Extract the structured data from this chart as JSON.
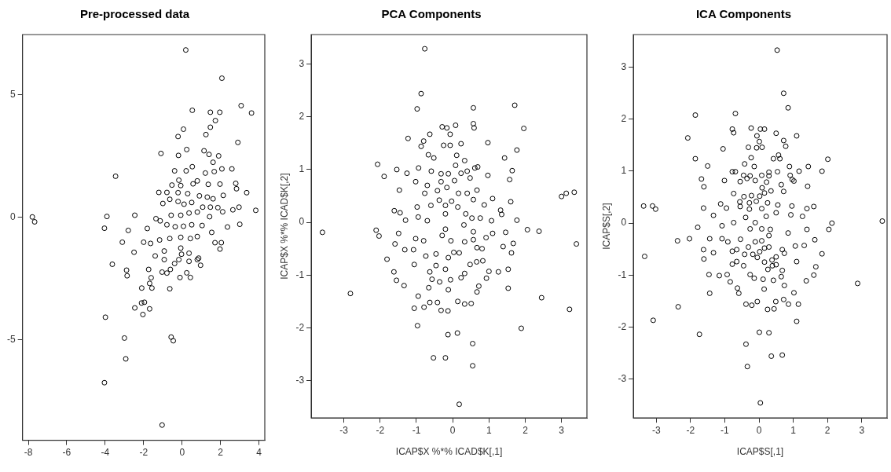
{
  "chart_data": [
    {
      "type": "scatter",
      "title": "Pre-processed data",
      "color": "#000000",
      "marker": "circle",
      "grid": false,
      "legend": false,
      "xlim": [
        -8.3,
        4.3
      ],
      "xticks": [
        -8,
        -6,
        -4,
        -2,
        0,
        2,
        4
      ],
      "ylim": [
        -9.1,
        7.45
      ],
      "yticks": [
        -5,
        0,
        5
      ],
      "x": [
        0.19,
        2.07,
        3.07,
        3.61,
        0.53,
        1.47,
        1.96,
        1.73,
        1.47,
        0.07,
        -0.21,
        1.24,
        2.9,
        0.24,
        -1.1,
        -0.19,
        1.14,
        1.4,
        1.9,
        1.61,
        -3.46,
        0.53,
        -0.39,
        0.21,
        2.07,
        2.59,
        1.67,
        1.21,
        -0.17,
        0.79,
        0.57,
        -0.07,
        -0.53,
        1.36,
        1.97,
        2.79,
        2.83,
        3.36,
        -1.21,
        -0.79,
        -0.21,
        0.29,
        0.9,
        1.31,
        1.61,
        2.14,
        -1.0,
        -0.64,
        -0.21,
        0.1,
        0.5,
        1.07,
        1.47,
        1.86,
        2.11,
        2.64,
        2.96,
        3.83,
        1.43,
        -0.57,
        -0.07,
        0.36,
        0.79,
        -7.79,
        -7.67,
        -3.91,
        -2.46,
        -1.36,
        -4.04,
        -2.8,
        -1.81,
        -1.14,
        -0.79,
        -0.36,
        0.07,
        0.5,
        1.04,
        2.36,
        3.0,
        1.54,
        -3.11,
        -2.0,
        -1.64,
        -1.17,
        -0.64,
        -0.07,
        0.43,
        0.79,
        1.71,
        2.04,
        1.97,
        -2.5,
        -1.4,
        -0.93,
        -0.07,
        0.36,
        0.86,
        -0.93,
        -3.63,
        -2.89,
        -2.86,
        -1.74,
        -1.61,
        -1.04,
        -0.79,
        -0.61,
        -0.39,
        -0.17,
        -0.03,
        0.36,
        0.24,
        -0.11,
        0.43,
        0.79,
        0.96,
        -1.69,
        -2.1,
        -1.57,
        -0.64,
        -2.11,
        -1.96,
        -2.46,
        -1.69,
        -2.04,
        -3.99,
        -3.0,
        -0.57,
        -0.46,
        -2.93,
        -4.04,
        -1.04
      ],
      "values": [
        6.82,
        5.67,
        4.55,
        4.25,
        4.36,
        4.28,
        4.28,
        3.94,
        3.67,
        3.59,
        3.29,
        3.37,
        3.05,
        2.76,
        2.6,
        2.52,
        2.71,
        2.56,
        2.5,
        2.24,
        1.67,
        2.06,
        1.89,
        1.89,
        1.97,
        1.97,
        1.86,
        1.8,
        1.51,
        1.48,
        1.36,
        1.29,
        1.31,
        1.34,
        1.35,
        1.38,
        1.16,
        1.0,
        1.01,
        1.01,
        1.0,
        0.96,
        0.87,
        0.82,
        0.75,
        0.89,
        0.56,
        0.73,
        0.64,
        0.53,
        0.6,
        0.41,
        0.41,
        0.39,
        0.22,
        0.3,
        0.41,
        0.28,
        0.02,
        0.08,
        0.08,
        0.17,
        0.21,
        0.01,
        -0.19,
        0.03,
        0.08,
        -0.06,
        -0.45,
        -0.54,
        -0.46,
        -0.15,
        -0.31,
        -0.39,
        -0.37,
        -0.31,
        -0.34,
        -0.4,
        -0.29,
        -0.62,
        -1.02,
        -1.02,
        -1.07,
        -0.93,
        -0.87,
        -0.82,
        -0.87,
        -0.79,
        -1.04,
        -1.04,
        -1.3,
        -1.43,
        -1.58,
        -1.38,
        -1.26,
        -1.47,
        -1.67,
        -1.73,
        -1.92,
        -2.16,
        -2.39,
        -2.13,
        -2.47,
        -2.24,
        -2.28,
        -2.13,
        -1.89,
        -1.73,
        -1.51,
        -1.8,
        -2.27,
        -2.46,
        -2.46,
        -1.73,
        -1.96,
        -2.7,
        -2.89,
        -2.89,
        -2.92,
        -3.5,
        -3.47,
        -3.7,
        -3.74,
        -3.97,
        -4.08,
        -4.93,
        -4.89,
        -5.04,
        -5.78,
        -6.75,
        -8.48
      ]
    },
    {
      "type": "scatter",
      "title": "PCA Components",
      "xlabel": "ICAP$X %*% ICAD$K[,1]",
      "ylabel": "ICAP$X %*% ICAD$K[,2]",
      "color": "#000000",
      "marker": "circle",
      "grid": false,
      "legend": false,
      "xlim": [
        -3.9,
        3.7
      ],
      "xticks": [
        -3,
        -2,
        -1,
        0,
        1,
        2,
        3
      ],
      "ylim": [
        -3.71,
        3.56
      ],
      "yticks": [
        -3,
        -2,
        -1,
        0,
        1,
        2,
        3
      ],
      "x": [
        -0.77,
        -0.87,
        -0.98,
        0.57,
        1.71,
        1.96,
        0.57,
        0.59,
        -0.29,
        -0.16,
        0.08,
        -0.07,
        -0.63,
        -1.23,
        -0.8,
        -0.87,
        -0.25,
        -0.07,
        0.23,
        0.97,
        1.77,
        1.43,
        -0.67,
        -0.52,
        0.11,
        0.33,
        -2.07,
        -1.54,
        -1.26,
        -0.94,
        -0.59,
        -0.32,
        -0.12,
        0.08,
        0.23,
        0.4,
        0.61,
        0.69,
        0.97,
        1.64,
        1.57,
        -1.89,
        -1.02,
        -0.7,
        -0.32,
        0.05,
        0.48,
        -1.47,
        -0.77,
        -0.42,
        -0.16,
        0.16,
        0.4,
        0.67,
        3.0,
        3.13,
        3.35,
        -0.37,
        -0.03,
        0.57,
        1.1,
        1.6,
        -0.6,
        -0.2,
        0.14,
        0.87,
        -0.98,
        -1.61,
        -1.45,
        -1.3,
        -0.95,
        -0.7,
        -0.2,
        0.36,
        0.53,
        0.76,
        1.32,
        1.35,
        1.07,
        1.77,
        -3.59,
        -2.11,
        -2.03,
        -1.49,
        -0.2,
        0.31,
        0.57,
        1.1,
        1.46,
        2.06,
        2.38,
        -1.02,
        -0.8,
        -0.29,
        -0.05,
        0.57,
        0.92,
        3.41,
        -1.59,
        1.67,
        -1.32,
        -1.08,
        -1.81,
        -1.06,
        -1.62,
        -1.55,
        -1.34,
        -2.82,
        -0.74,
        -0.63,
        -0.57,
        -0.36,
        -0.66,
        -0.95,
        -1.06,
        -0.79,
        -0.63,
        -0.42,
        -0.32,
        -0.13,
        -0.12,
        -0.06,
        -0.46,
        -0.2,
        -0.12,
        0.03,
        0.18,
        -0.46,
        0.23,
        0.33,
        0.14,
        0.33,
        0.51,
        0.48,
        0.67,
        0.81,
        0.66,
        0.83,
        1.0,
        1.26,
        0.93,
        0.72,
        0.67,
        1.53,
        1.53,
        1.39,
        1.62,
        2.45,
        3.22,
        -0.97,
        -0.13,
        0.13,
        1.89,
        0.55,
        -0.53,
        -0.2,
        0.55,
        0.18,
        0.33
      ],
      "values": [
        3.29,
        2.44,
        2.15,
        2.17,
        2.22,
        1.78,
        1.87,
        1.79,
        1.81,
        1.79,
        1.84,
        1.67,
        1.67,
        1.59,
        1.54,
        1.44,
        1.46,
        1.46,
        1.49,
        1.51,
        1.37,
        1.22,
        1.28,
        1.22,
        1.27,
        1.17,
        1.1,
        1.0,
        0.93,
        1.03,
        0.97,
        0.92,
        0.92,
        1.08,
        0.93,
        0.97,
        1.03,
        1.05,
        0.89,
        0.98,
        0.81,
        0.87,
        0.77,
        0.7,
        0.77,
        0.79,
        0.84,
        0.61,
        0.55,
        0.6,
        0.66,
        0.55,
        0.55,
        0.61,
        0.49,
        0.55,
        0.57,
        0.42,
        0.4,
        0.43,
        0.45,
        0.39,
        0.32,
        0.32,
        0.29,
        0.33,
        0.29,
        0.22,
        0.18,
        0.04,
        0.1,
        0.03,
        0.16,
        0.16,
        0.08,
        0.08,
        0.23,
        0.15,
        0.03,
        0.04,
        -0.19,
        -0.15,
        -0.26,
        -0.21,
        -0.13,
        -0.05,
        -0.18,
        -0.21,
        -0.19,
        -0.14,
        -0.17,
        -0.31,
        -0.35,
        -0.25,
        -0.35,
        -0.33,
        -0.29,
        -0.41,
        -0.41,
        -0.4,
        -0.52,
        -0.52,
        -0.7,
        -0.8,
        -0.94,
        -1.1,
        -1.2,
        -1.35,
        -0.64,
        -0.94,
        -1.08,
        -1.13,
        -1.24,
        -1.4,
        -1.63,
        -1.61,
        -1.52,
        -1.52,
        -1.67,
        -1.68,
        -1.28,
        -1.09,
        -0.82,
        -0.89,
        -0.67,
        -0.57,
        -0.58,
        -0.6,
        -1.05,
        -0.97,
        -1.5,
        -1.55,
        -1.54,
        -0.8,
        -0.48,
        -0.5,
        -0.75,
        -0.73,
        -0.93,
        -0.94,
        -1.06,
        -1.21,
        -1.32,
        -0.89,
        -1.25,
        -0.46,
        -0.58,
        -1.43,
        -1.65,
        -1.96,
        -2.13,
        -2.1,
        -2.01,
        -2.3,
        -2.57,
        -2.57,
        -2.72,
        -3.45,
        -0.37
      ]
    },
    {
      "type": "scatter",
      "title": "ICA Components",
      "xlabel": "ICAP$S[,1]",
      "ylabel": "ICAP$S[,2]",
      "color": "#000000",
      "marker": "circle",
      "grid": false,
      "legend": false,
      "xlim": [
        -3.67,
        3.74
      ],
      "xticks": [
        -3,
        -2,
        -1,
        0,
        1,
        2,
        3
      ],
      "ylim": [
        -3.75,
        3.63
      ],
      "yticks": [
        -3,
        -2,
        -1,
        0,
        1,
        2,
        3
      ],
      "x": [
        0.53,
        0.72,
        0.85,
        -1.86,
        -0.69,
        -2.08,
        -0.78,
        -0.74,
        -0.23,
        0.04,
        0.16,
        0.5,
        1.1,
        -0.06,
        0.01,
        0.72,
        0.78,
        -1.05,
        -0.31,
        -0.07,
        0.09,
        -1.86,
        -0.23,
        0.42,
        0.57,
        0.61,
        2.01,
        -1.5,
        -0.42,
        -0.14,
        0.89,
        1.44,
        1.17,
        1.84,
        -0.78,
        -0.69,
        0.29,
        0.54,
        -0.45,
        -0.26,
        0.08,
        0.29,
        0.91,
        -1.68,
        -1.01,
        -0.55,
        -0.35,
        -0.11,
        0.22,
        0.97,
        1.02,
        -1.61,
        0.65,
        1.42,
        0.09,
        0.35,
        0.72,
        -0.74,
        -0.44,
        -0.22,
        0.02,
        0.16,
        -0.56,
        -1.12,
        -0.28,
        -0.08,
        0.25,
        0.55,
        0.96,
        -3.37,
        -3.11,
        -3.02,
        -1.62,
        -0.95,
        -0.55,
        -0.28,
        0.08,
        1.4,
        1.6,
        -1.33,
        -0.74,
        -0.39,
        -0.11,
        0.21,
        0.5,
        0.93,
        1.27,
        2.13,
        3.6,
        -1.79,
        -1.08,
        0.08,
        0.33,
        1.4,
        2.04,
        -2.38,
        -2.03,
        -1.44,
        -1.08,
        -0.91,
        -0.54,
        -0.26,
        0.29,
        0.85,
        1.63,
        -3.34,
        -1.62,
        -1.61,
        -1.33,
        -0.78,
        -0.65,
        -0.78,
        -0.65,
        -0.45,
        -0.42,
        -0.31,
        -0.18,
        -0.11,
        0.08,
        -0.05,
        0.02,
        0.16,
        0.29,
        0.16,
        0.38,
        0.5,
        0.26,
        0.39,
        0.5,
        0.68,
        0.74,
        0.68,
        1.06,
        1.32,
        1.1,
        1.66,
        1.84,
        -1.46,
        -1.16,
        -0.93,
        -0.84,
        -0.26,
        -0.14,
        0.12,
        0.42,
        0.65,
        0.74,
        1.38,
        1.6,
        2.88,
        -0.63,
        -0.59,
        -1.44,
        0.15,
        1.02,
        -2.36,
        -0.38,
        -0.21,
        -0.05,
        0.25,
        0.44,
        0.49,
        0.72,
        0.86,
        1.15,
        -3.09,
        1.1,
        -1.74,
        0.01,
        0.29,
        -0.38,
        0.36,
        0.68,
        -0.34,
        0.04
      ],
      "values": [
        3.33,
        2.5,
        2.22,
        2.08,
        2.11,
        1.64,
        1.81,
        1.74,
        1.83,
        1.81,
        1.81,
        1.73,
        1.68,
        1.68,
        1.57,
        1.59,
        1.48,
        1.43,
        1.46,
        1.45,
        1.46,
        1.24,
        1.26,
        1.24,
        1.31,
        1.24,
        1.23,
        1.1,
        1.14,
        1.09,
        1.09,
        1.09,
        1.0,
        1.0,
        0.99,
        0.99,
        0.98,
        0.99,
        0.92,
        0.91,
        0.92,
        0.91,
        0.92,
        0.85,
        0.82,
        0.8,
        0.86,
        0.82,
        0.79,
        0.84,
        0.81,
        0.7,
        0.74,
        0.71,
        0.68,
        0.62,
        0.61,
        0.57,
        0.51,
        0.53,
        0.52,
        0.58,
        0.41,
        0.37,
        0.39,
        0.42,
        0.39,
        0.35,
        0.33,
        0.33,
        0.33,
        0.27,
        0.29,
        0.29,
        0.32,
        0.27,
        0.28,
        0.28,
        0.32,
        0.15,
        0.01,
        0.11,
        0.01,
        0.13,
        0.2,
        0.16,
        0.13,
        0.0,
        0.04,
        -0.08,
        -0.05,
        -0.11,
        -0.12,
        -0.12,
        -0.12,
        -0.34,
        -0.3,
        -0.3,
        -0.3,
        -0.36,
        -0.31,
        -0.11,
        -0.24,
        -0.19,
        -0.32,
        -0.64,
        -0.51,
        -0.69,
        -0.57,
        -0.54,
        -0.51,
        -0.79,
        -0.74,
        -0.82,
        -0.6,
        -0.46,
        -0.6,
        -0.36,
        -0.34,
        -0.66,
        -0.55,
        -0.48,
        -0.46,
        -0.75,
        -0.71,
        -0.65,
        -0.89,
        -0.82,
        -0.8,
        -0.51,
        -0.58,
        -0.91,
        -0.44,
        -0.43,
        -0.74,
        -0.84,
        -0.59,
        -0.99,
        -1.01,
        -0.99,
        -1.13,
        -0.99,
        -1.06,
        -1.08,
        -1.1,
        -1.03,
        -1.2,
        -1.11,
        -1.0,
        -1.16,
        -1.25,
        -1.35,
        -1.35,
        -1.27,
        -1.34,
        -1.61,
        -1.56,
        -1.58,
        -1.51,
        -1.66,
        -1.65,
        -1.51,
        -1.47,
        -1.56,
        -1.56,
        -1.87,
        -1.89,
        -2.14,
        -2.1,
        -2.11,
        -2.33,
        -2.56,
        -2.54,
        -2.76,
        -3.46
      ]
    }
  ]
}
